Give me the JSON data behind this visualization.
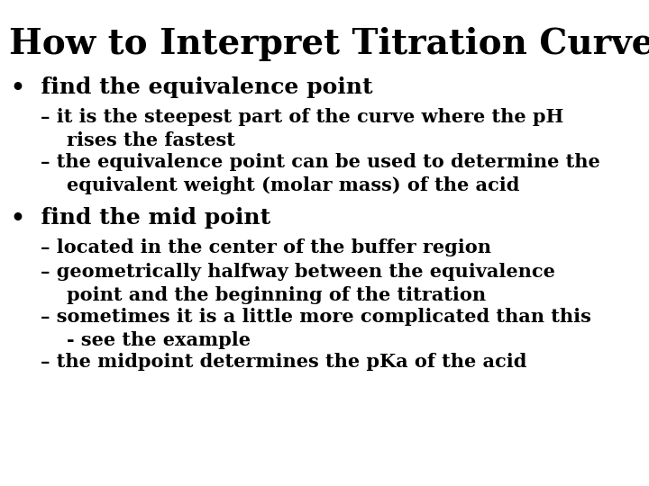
{
  "title": "How to Interpret Titration Curves",
  "background_color": "#ffffff",
  "text_color": "#000000",
  "title_fontsize": 28,
  "bullet_fontsize": 18,
  "sub_fontsize": 15,
  "bullet1_bold": "find the equivalence point",
  "bullet1_subs": [
    "it is the steepest part of the curve where the pH\n    rises the fastest",
    "the equivalence point can be used to determine the\n    equivalent weight (molar mass) of the acid"
  ],
  "bullet2_bold": "find the mid point",
  "bullet2_subs": [
    "located in the center of the buffer region",
    "geometrically halfway between the equivalence\n    point and the beginning of the titration",
    "sometimes it is a little more complicated than this\n    - see the example",
    "the midpoint determines the pKa of the acid"
  ]
}
